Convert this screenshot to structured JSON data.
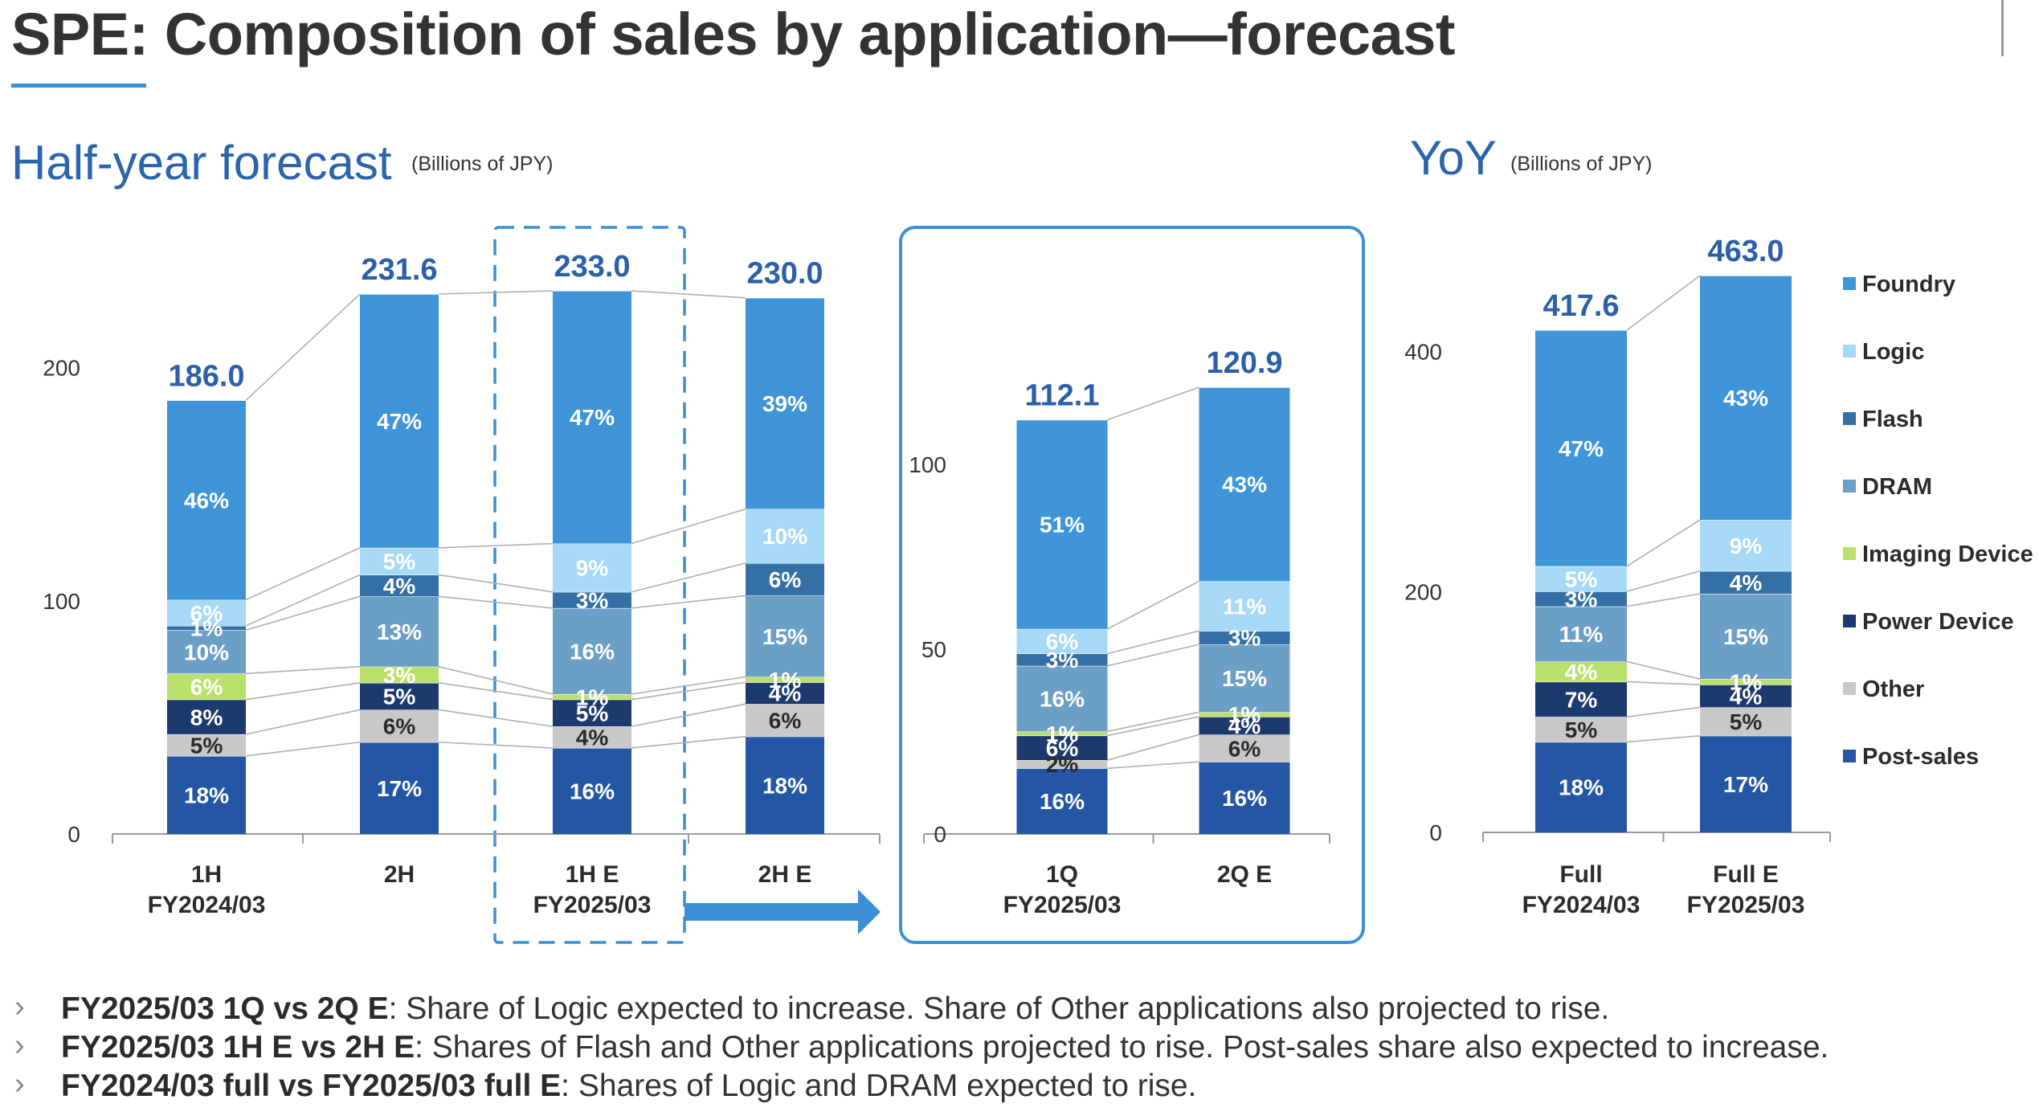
{
  "title": "SPE: Composition of sales by application—forecast",
  "sections": {
    "half_year": {
      "title": "Half-year forecast",
      "unit": "(Billions of JPY)"
    },
    "yoy": {
      "title": "YoY",
      "unit": "(Billions of JPY)"
    }
  },
  "legend": [
    "Foundry",
    "Logic",
    "Flash",
    "DRAM",
    "Imaging Device",
    "Power Device",
    "Other",
    "Post-sales"
  ],
  "colors": {
    "Post-sales": "#2456a4",
    "Other": "#c8c8c8",
    "Power Device": "#1c3a6e",
    "Imaging Device": "#b9e06a",
    "DRAM": "#6b9fc5",
    "Flash": "#3470a6",
    "Logic": "#a7d8f5",
    "Foundry": "#3f95d7",
    "total_label": "#2b5fa8",
    "connector": "#b0b0b0",
    "highlight": "#3a8fd6"
  },
  "chart_data": [
    {
      "type": "bar",
      "stacked": true,
      "segments_bottom_to_top": [
        "Post-sales",
        "Other",
        "Power Device",
        "Imaging Device",
        "DRAM",
        "Flash",
        "Logic",
        "Foundry"
      ],
      "ylim": [
        0,
        231.6
      ],
      "yticks": [
        0,
        100,
        200
      ],
      "categories": [
        "1H\nFY2024/03",
        "2H",
        "1H E\nFY2025/03",
        "2H E"
      ],
      "totals": [
        186.0,
        231.6,
        233.0,
        230.0
      ],
      "total_labels": [
        "186.0",
        "231.6",
        "233.0",
        "230.0"
      ],
      "shares": [
        [
          18,
          5,
          8,
          6,
          10,
          1,
          6,
          46
        ],
        [
          17,
          6,
          5,
          3,
          13,
          4,
          5,
          47
        ],
        [
          16,
          4,
          5,
          1,
          16,
          3,
          9,
          47
        ],
        [
          18,
          6,
          4,
          1,
          15,
          6,
          10,
          39
        ]
      ],
      "percent_labels": [
        [
          "18%",
          "5%",
          "8%",
          "6%",
          "10%",
          "1%",
          "6%",
          "46%"
        ],
        [
          "17%",
          "6%",
          "5%",
          "3%",
          "13%",
          "4%",
          "5%",
          "47%"
        ],
        [
          "16%",
          "4%",
          "5%",
          "1%",
          "16%",
          "3%",
          "9%",
          "47%"
        ],
        [
          "18%",
          "6%",
          "4%",
          "1%",
          "15%",
          "6%",
          "10%",
          "39%"
        ]
      ],
      "highlighted_category": "1H E\nFY2025/03"
    },
    {
      "type": "bar",
      "stacked": true,
      "segments_bottom_to_top": [
        "Post-sales",
        "Other",
        "Power Device",
        "Imaging Device",
        "DRAM",
        "Flash",
        "Logic",
        "Foundry"
      ],
      "ylim": [
        0,
        120.9
      ],
      "yticks": [
        0,
        50,
        100
      ],
      "categories": [
        "1Q\nFY2025/03",
        "2Q E"
      ],
      "totals": [
        112.1,
        120.9
      ],
      "total_labels": [
        "112.1",
        "120.9"
      ],
      "shares": [
        [
          16,
          2,
          6,
          1,
          16,
          3,
          6,
          51
        ],
        [
          16,
          6,
          4,
          1,
          15,
          3,
          11,
          43
        ]
      ],
      "percent_labels": [
        [
          "16%",
          "2%",
          "6%",
          "1%",
          "16%",
          "3%",
          "6%",
          "51%"
        ],
        [
          "16%",
          "6%",
          "4%",
          "1%",
          "15%",
          "3%",
          "11%",
          "43%"
        ]
      ]
    },
    {
      "type": "bar",
      "stacked": true,
      "segments_bottom_to_top": [
        "Post-sales",
        "Other",
        "Power Device",
        "Imaging Device",
        "DRAM",
        "Flash",
        "Logic",
        "Foundry"
      ],
      "ylim": [
        0,
        463.0
      ],
      "yticks": [
        0,
        200,
        400
      ],
      "categories": [
        "Full\nFY2024/03",
        "Full E\nFY2025/03"
      ],
      "totals": [
        417.6,
        463.0
      ],
      "total_labels": [
        "417.6",
        "463.0"
      ],
      "shares": [
        [
          18,
          5,
          7,
          4,
          11,
          3,
          5,
          47
        ],
        [
          17,
          5,
          4,
          1,
          15,
          4,
          9,
          43
        ]
      ],
      "percent_labels": [
        [
          "18%",
          "5%",
          "7%",
          "4%",
          "11%",
          "3%",
          "5%",
          "47%"
        ],
        [
          "17%",
          "5%",
          "4%",
          "1%",
          "15%",
          "4%",
          "9%",
          "43%"
        ]
      ]
    }
  ],
  "bullets": [
    {
      "bold": "FY2025/03 1Q vs 2Q E",
      "text": ": Share of Logic expected to increase. Share of Other applications also projected to rise."
    },
    {
      "bold": "FY2025/03 1H E vs 2H E",
      "text": ": Shares of Flash and Other applications projected to rise. Post-sales share also expected to increase."
    },
    {
      "bold": "FY2024/03 full vs FY2025/03 full E",
      "text": ": Shares of Logic and DRAM expected to rise."
    }
  ]
}
